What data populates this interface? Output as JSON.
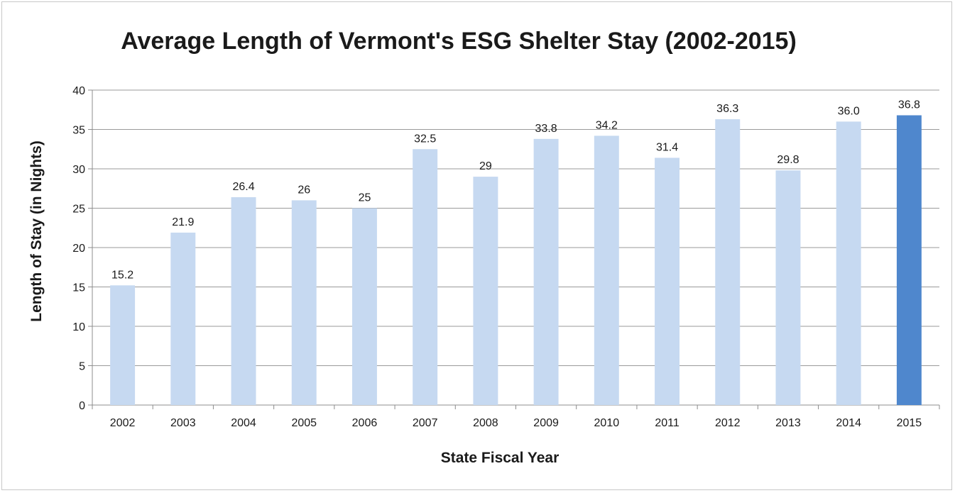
{
  "chart_data": {
    "type": "bar",
    "title": "Average Length of Vermont's ESG Shelter Stay (2002-2015)",
    "xlabel": "State Fiscal Year",
    "ylabel": "Length of Stay (in Nights)",
    "categories": [
      "2002",
      "2003",
      "2004",
      "2005",
      "2006",
      "2007",
      "2008",
      "2009",
      "2010",
      "2011",
      "2012",
      "2013",
      "2014",
      "2015"
    ],
    "values": [
      15.2,
      21.9,
      26.4,
      26,
      25,
      32.5,
      29,
      33.8,
      34.2,
      31.4,
      36.3,
      29.8,
      36.0,
      36.8
    ],
    "value_labels": [
      "15.2",
      "21.9",
      "26.4",
      "26",
      "25",
      "32.5",
      "29",
      "33.8",
      "34.2",
      "31.4",
      "36.3",
      "29.8",
      "36.0",
      "36.8"
    ],
    "ylim": [
      0,
      40
    ],
    "yticks": [
      "0",
      "5",
      "10",
      "15",
      "20",
      "25",
      "30",
      "35",
      "40"
    ],
    "grid": true,
    "legend": "none",
    "colors": {
      "bar": "#c6d9f1",
      "highlight_bar": "#4f87cd",
      "grid": "#9a9a9a",
      "axis": "#8c8c8c"
    },
    "highlight_index": 13
  }
}
